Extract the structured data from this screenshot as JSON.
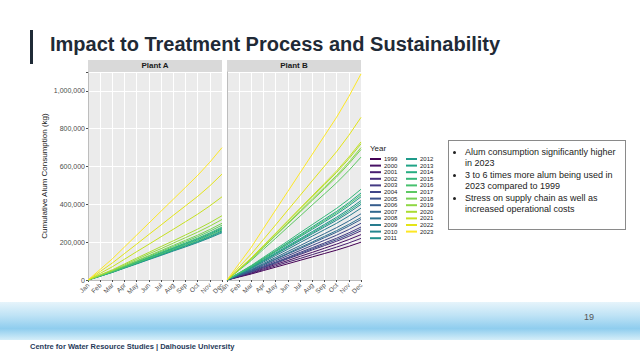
{
  "slide": {
    "title": "Impact to Treatment Process and Sustainability",
    "bullets": [
      "Alum consumption significantly higher in 2023",
      "3 to 6 times more alum being used in 2023 compared to 1999",
      "Stress on supply chain as well as increased operational costs"
    ],
    "footer": "Centre for Water Resource Studies | Dalhousie University",
    "page_number": 19
  },
  "chart_data": [
    {
      "type": "line",
      "title": "Plant A",
      "y_label": "Cumulative Alum Consumption (kg)",
      "categories": [
        "Jan",
        "Feb",
        "Mar",
        "Apr",
        "May",
        "Jun",
        "Jul",
        "Aug",
        "Sep",
        "Oct",
        "Nov",
        "Dec"
      ],
      "ylim": [
        0,
        1100000
      ],
      "yticks": [
        0,
        {
          "value": 200000,
          "label": "200,000"
        },
        {
          "value": 400000,
          "label": "400,000"
        },
        {
          "value": 600000,
          "label": "600,000"
        },
        {
          "value": 800000,
          "label": "800,000"
        },
        {
          "value": 1000000,
          "label": "1,000,000"
        }
      ],
      "grid": true,
      "series": [
        {
          "name": "2010",
          "color": "#24868E",
          "values": [
            0,
            20000,
            40000,
            63000,
            85000,
            108000,
            130000,
            153000,
            175000,
            198000,
            223000,
            250000
          ]
        },
        {
          "name": "2011",
          "color": "#21908C",
          "values": [
            0,
            21000,
            42000,
            65000,
            88000,
            112000,
            135000,
            159000,
            182000,
            205000,
            231000,
            260000
          ]
        },
        {
          "name": "2012",
          "color": "#1F9A8A",
          "values": [
            0,
            22000,
            43000,
            68000,
            92000,
            116000,
            140000,
            165000,
            189000,
            213000,
            240000,
            270000
          ]
        },
        {
          "name": "2013",
          "color": "#20A486",
          "values": [
            0,
            20000,
            41000,
            64000,
            87000,
            110000,
            133000,
            156000,
            179000,
            201000,
            227000,
            255000
          ]
        },
        {
          "name": "2014",
          "color": "#27AD81",
          "values": [
            0,
            22000,
            44000,
            69000,
            94000,
            118000,
            143000,
            168000,
            193000,
            217000,
            245000,
            275000
          ]
        },
        {
          "name": "2015",
          "color": "#35B779",
          "values": [
            0,
            22000,
            45000,
            70000,
            95000,
            120000,
            146000,
            171000,
            196000,
            221000,
            249000,
            280000
          ]
        },
        {
          "name": "2016",
          "color": "#47C16E",
          "values": [
            0,
            21000,
            42000,
            66000,
            90000,
            114000,
            138000,
            162000,
            186000,
            209000,
            236000,
            265000
          ]
        },
        {
          "name": "2017",
          "color": "#5DC863",
          "values": [
            0,
            23000,
            46000,
            73000,
            99000,
            125000,
            151000,
            177000,
            203000,
            229000,
            258000,
            290000
          ]
        },
        {
          "name": "2018",
          "color": "#75D054",
          "values": [
            0,
            24000,
            48000,
            75000,
            102000,
            129000,
            156000,
            183000,
            210000,
            237000,
            267000,
            300000
          ]
        },
        {
          "name": "2019",
          "color": "#8FD744",
          "values": [
            0,
            26000,
            51000,
            80000,
            109000,
            138000,
            166000,
            195000,
            224000,
            253000,
            285000,
            320000
          ]
        },
        {
          "name": "2020",
          "color": "#AADC32",
          "values": [
            0,
            27000,
            54000,
            85000,
            116000,
            146000,
            177000,
            207000,
            238000,
            269000,
            303000,
            340000
          ]
        },
        {
          "name": "2021",
          "color": "#C7E020",
          "values": [
            0,
            35000,
            70000,
            110000,
            150000,
            189000,
            229000,
            268000,
            308000,
            348000,
            392000,
            440000
          ]
        },
        {
          "name": "2022",
          "color": "#E3E418",
          "values": [
            0,
            45000,
            90000,
            140000,
            190000,
            241000,
            291000,
            342000,
            392000,
            442000,
            498000,
            560000
          ]
        },
        {
          "name": "2023",
          "color": "#FDE725",
          "values": [
            0,
            56000,
            112000,
            175000,
            238000,
            301000,
            364000,
            427000,
            490000,
            553000,
            623000,
            700000
          ]
        }
      ]
    },
    {
      "type": "line",
      "title": "Plant B",
      "legend": "right",
      "legend_title": "Year",
      "tick_labels": "x",
      "categories": [
        "Jan",
        "Feb",
        "Mar",
        "Apr",
        "May",
        "Jun",
        "Jul",
        "Aug",
        "Sep",
        "Oct",
        "Nov",
        "Dec"
      ],
      "ylim": [
        0,
        1100000
      ],
      "yticks": [
        0,
        {
          "value": 200000,
          "label": "200,000"
        },
        {
          "value": 400000,
          "label": "400,000"
        },
        {
          "value": 600000,
          "label": "600,000"
        },
        {
          "value": 800000,
          "label": "800,000"
        },
        {
          "value": 1000000,
          "label": "1,000,000"
        }
      ],
      "grid": true,
      "series": [
        {
          "name": "1999",
          "color": "#440154",
          "values": [
            0,
            16000,
            32000,
            50000,
            68000,
            86000,
            104000,
            122000,
            140000,
            158000,
            178000,
            200000
          ]
        },
        {
          "name": "2000",
          "color": "#471164",
          "values": [
            0,
            19000,
            38000,
            60000,
            82000,
            103000,
            125000,
            146000,
            168000,
            190000,
            214000,
            240000
          ]
        },
        {
          "name": "2001",
          "color": "#481F70",
          "values": [
            0,
            18000,
            35000,
            55000,
            75000,
            95000,
            114000,
            134000,
            154000,
            174000,
            196000,
            220000
          ]
        },
        {
          "name": "2002",
          "color": "#472D7B",
          "values": [
            0,
            21000,
            42000,
            65000,
            88000,
            112000,
            135000,
            159000,
            182000,
            205000,
            231000,
            260000
          ]
        },
        {
          "name": "2003",
          "color": "#443A83",
          "values": [
            0,
            22000,
            45000,
            70000,
            95000,
            120000,
            146000,
            171000,
            196000,
            221000,
            249000,
            280000
          ]
        },
        {
          "name": "2004",
          "color": "#404688",
          "values": [
            0,
            24000,
            48000,
            75000,
            102000,
            129000,
            156000,
            183000,
            210000,
            237000,
            267000,
            300000
          ]
        },
        {
          "name": "2005",
          "color": "#3B528B",
          "values": [
            0,
            22000,
            43000,
            68000,
            92000,
            116000,
            140000,
            165000,
            189000,
            213000,
            240000,
            270000
          ]
        },
        {
          "name": "2006",
          "color": "#365D8D",
          "values": [
            0,
            26000,
            51000,
            80000,
            109000,
            138000,
            166000,
            195000,
            224000,
            253000,
            285000,
            320000
          ]
        },
        {
          "name": "2007",
          "color": "#31688E",
          "values": [
            0,
            28000,
            56000,
            88000,
            119000,
            151000,
            182000,
            214000,
            245000,
            277000,
            312000,
            350000
          ]
        },
        {
          "name": "2008",
          "color": "#2C728E",
          "values": [
            0,
            26000,
            53000,
            83000,
            112000,
            142000,
            172000,
            201000,
            231000,
            261000,
            294000,
            330000
          ]
        },
        {
          "name": "2009",
          "color": "#287C8E",
          "values": [
            0,
            30000,
            61000,
            95000,
            129000,
            163000,
            198000,
            232000,
            266000,
            300000,
            338000,
            380000
          ]
        },
        {
          "name": "2010",
          "color": "#24868E",
          "values": [
            0,
            32000,
            64000,
            100000,
            136000,
            172000,
            208000,
            244000,
            280000,
            316000,
            356000,
            400000
          ]
        },
        {
          "name": "2011",
          "color": "#21908C",
          "values": [
            0,
            34000,
            67000,
            105000,
            143000,
            181000,
            218000,
            256000,
            294000,
            332000,
            374000,
            420000
          ]
        },
        {
          "name": "2012",
          "color": "#1F9A8A",
          "values": [
            0,
            35000,
            70000,
            110000,
            150000,
            189000,
            229000,
            268000,
            308000,
            348000,
            392000,
            440000
          ]
        },
        {
          "name": "2013",
          "color": "#20A486",
          "values": [
            0,
            37000,
            74000,
            115000,
            156000,
            198000,
            239000,
            281000,
            322000,
            363000,
            409000,
            460000
          ]
        },
        {
          "name": "2014",
          "color": "#27AD81",
          "values": [
            0,
            33000,
            66000,
            103000,
            139000,
            176000,
            213000,
            250000,
            287000,
            324000,
            365000,
            410000
          ]
        },
        {
          "name": "2015",
          "color": "#35B779",
          "values": [
            0,
            38000,
            77000,
            120000,
            163000,
            206000,
            250000,
            293000,
            336000,
            379000,
            427000,
            480000
          ]
        },
        {
          "name": "2016",
          "color": "#47C16E",
          "values": [
            0,
            36000,
            72000,
            113000,
            153000,
            194000,
            234000,
            275000,
            315000,
            356000,
            401000,
            450000
          ]
        },
        {
          "name": "2017",
          "color": "#5DC863",
          "values": [
            0,
            52000,
            104000,
            163000,
            221000,
            280000,
            338000,
            397000,
            455000,
            514000,
            579000,
            650000
          ]
        },
        {
          "name": "2018",
          "color": "#75D054",
          "values": [
            0,
            55000,
            110000,
            173000,
            235000,
            297000,
            359000,
            421000,
            483000,
            545000,
            614000,
            690000
          ]
        },
        {
          "name": "2019",
          "color": "#8FD744",
          "values": [
            0,
            56000,
            112000,
            175000,
            238000,
            301000,
            364000,
            427000,
            490000,
            553000,
            623000,
            700000
          ]
        },
        {
          "name": "2020",
          "color": "#AADC32",
          "values": [
            0,
            58000,
            115000,
            180000,
            245000,
            310000,
            374000,
            439000,
            504000,
            569000,
            641000,
            720000
          ]
        },
        {
          "name": "2021",
          "color": "#C7E020",
          "values": [
            0,
            58000,
            117000,
            183000,
            248000,
            314000,
            380000,
            445000,
            511000,
            577000,
            650000,
            730000
          ]
        },
        {
          "name": "2022",
          "color": "#E3E418",
          "values": [
            0,
            69000,
            138000,
            215000,
            292000,
            370000,
            447000,
            525000,
            602000,
            679000,
            765000,
            860000
          ]
        },
        {
          "name": "2023",
          "color": "#FDE725",
          "values": [
            0,
            87000,
            174000,
            273000,
            371000,
            469000,
            567000,
            665000,
            763000,
            861000,
            970000,
            1090000
          ]
        }
      ]
    }
  ]
}
